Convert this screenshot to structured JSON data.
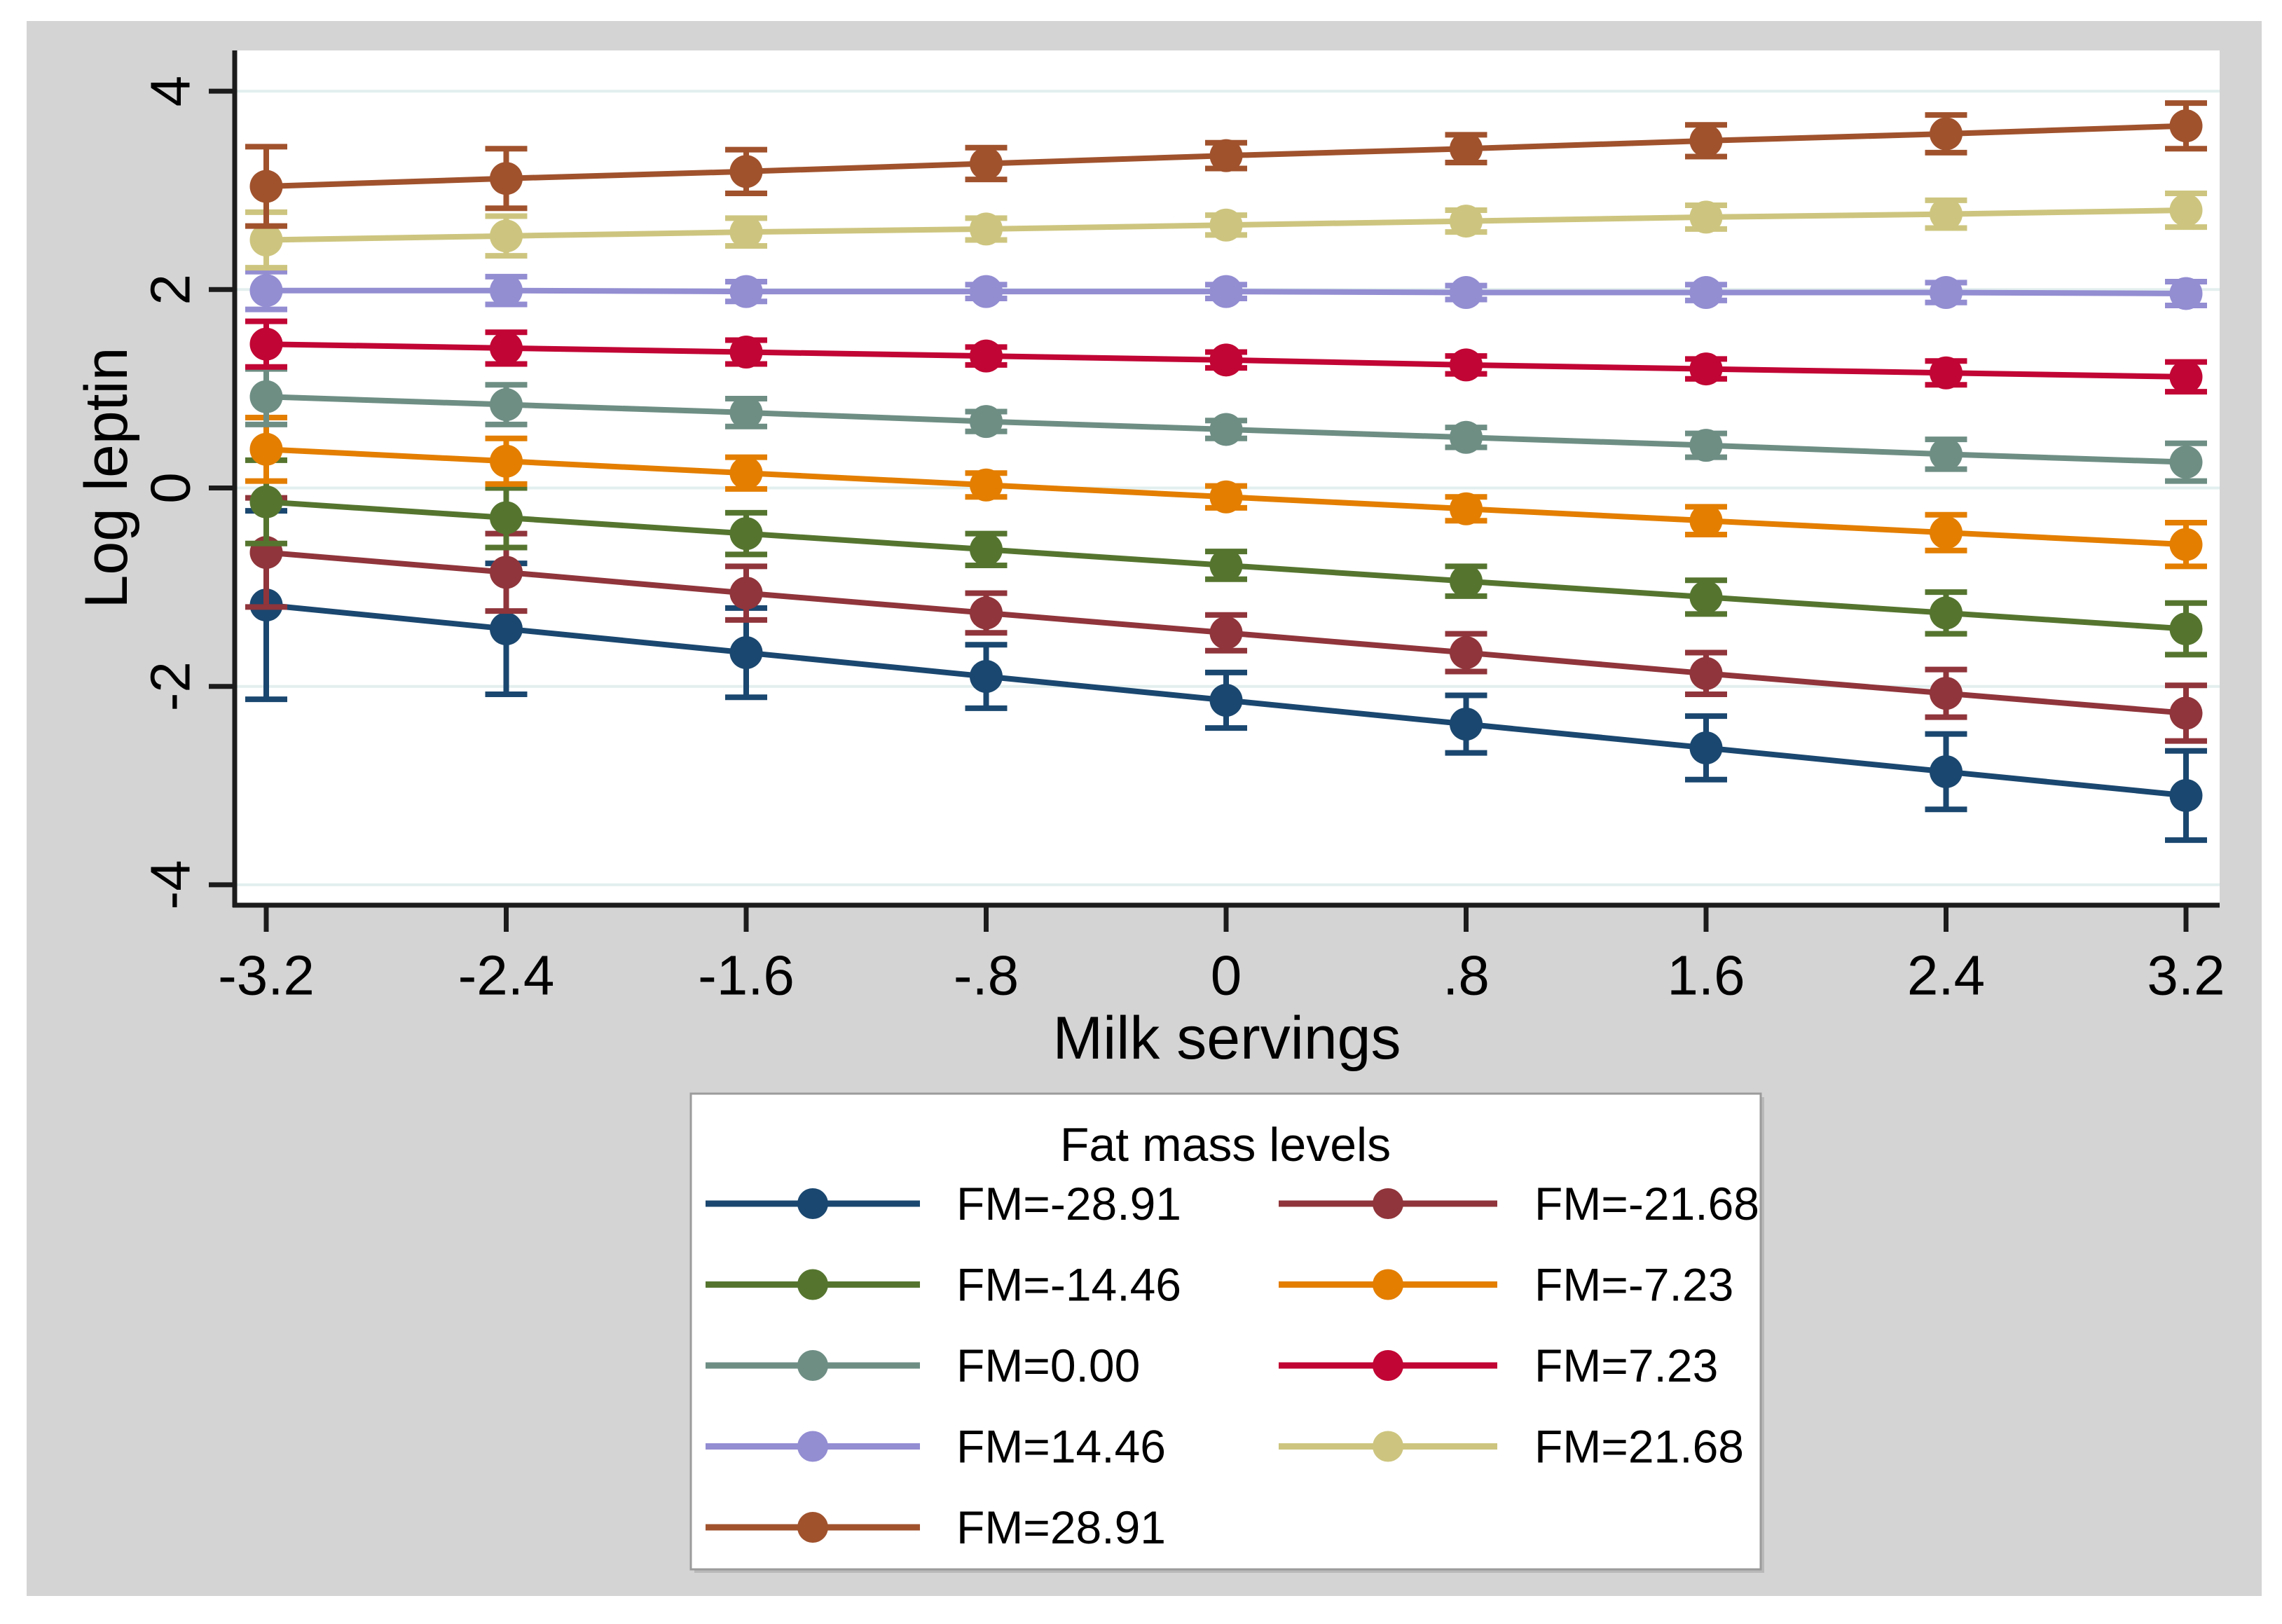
{
  "figure": {
    "x_axis": {
      "title": "Milk servings"
    },
    "y_axis": {
      "title": "Log leptin"
    },
    "legend": {
      "title": "Fat mass levels"
    }
  },
  "colors": {
    "page_background": "#ffffff",
    "panel_background": "#d4d4d4",
    "plot_background": "#ffffff",
    "gridline": "#e2efee",
    "axis": "#1c1c1c",
    "legend_border": "#9b9b9b",
    "legend_background": "#ffffff"
  },
  "chart_data": {
    "type": "line",
    "title": "",
    "xlabel": "Milk servings",
    "ylabel": "Log leptin",
    "x": [
      -3.2,
      -2.4,
      -1.6,
      -0.8,
      0,
      0.8,
      1.6,
      2.4,
      3.2
    ],
    "x_tick_labels": [
      "-3.2",
      "-2.4",
      "-1.6",
      "-.8",
      "0",
      ".8",
      "1.6",
      "2.4",
      "3.2"
    ],
    "y_ticks": [
      4,
      2,
      0,
      -2,
      -4
    ],
    "y_tick_labels": [
      "4",
      "2",
      "0",
      "-2",
      "-4"
    ],
    "ylim": [
      -4.45,
      4.4
    ],
    "xlim": [
      -3.3,
      3.31
    ],
    "grid": "horizontal gridlines at y ticks",
    "legend_title": "Fat mass levels",
    "legend_position": "below plot, two columns",
    "error_bars": true,
    "marker": "circle",
    "series": [
      {
        "name": "FM=-28.91",
        "color": "#1A476F",
        "values": [
          -1.18,
          -1.42,
          -1.66,
          -1.9,
          -2.14,
          -2.38,
          -2.62,
          -2.86,
          -3.1
        ],
        "ci_half_width": [
          0.95,
          0.66,
          0.45,
          0.32,
          0.28,
          0.29,
          0.32,
          0.38,
          0.45
        ]
      },
      {
        "name": "FM=-21.68",
        "color": "#90353B",
        "values": [
          -0.65,
          -0.85,
          -1.06,
          -1.26,
          -1.46,
          -1.66,
          -1.87,
          -2.07,
          -2.27
        ],
        "ci_half_width": [
          0.55,
          0.39,
          0.27,
          0.2,
          0.18,
          0.19,
          0.21,
          0.24,
          0.28
        ]
      },
      {
        "name": "FM=-14.46",
        "color": "#55752F",
        "values": [
          -0.14,
          -0.3,
          -0.46,
          -0.62,
          -0.78,
          -0.94,
          -1.1,
          -1.26,
          -1.42
        ],
        "ci_half_width": [
          0.42,
          0.3,
          0.21,
          0.16,
          0.14,
          0.15,
          0.17,
          0.21,
          0.26
        ]
      },
      {
        "name": "FM=-7.23",
        "color": "#E37E00",
        "values": [
          0.39,
          0.27,
          0.15,
          0.03,
          -0.09,
          -0.21,
          -0.33,
          -0.45,
          -0.57
        ],
        "ci_half_width": [
          0.32,
          0.23,
          0.16,
          0.12,
          0.11,
          0.12,
          0.14,
          0.18,
          0.22
        ]
      },
      {
        "name": "FM=0.00",
        "color": "#6E8E84",
        "values": [
          0.92,
          0.84,
          0.76,
          0.67,
          0.59,
          0.51,
          0.43,
          0.34,
          0.26
        ],
        "ci_half_width": [
          0.28,
          0.2,
          0.14,
          0.1,
          0.09,
          0.1,
          0.12,
          0.15,
          0.19
        ]
      },
      {
        "name": "FM=7.23",
        "color": "#C10534",
        "values": [
          1.45,
          1.41,
          1.37,
          1.33,
          1.29,
          1.24,
          1.2,
          1.16,
          1.12
        ],
        "ci_half_width": [
          0.23,
          0.16,
          0.12,
          0.09,
          0.08,
          0.09,
          0.1,
          0.12,
          0.15
        ]
      },
      {
        "name": "FM=14.46",
        "color": "#938DD2",
        "values": [
          1.99,
          1.99,
          1.98,
          1.98,
          1.98,
          1.97,
          1.97,
          1.97,
          1.96
        ],
        "ci_half_width": [
          0.19,
          0.14,
          0.1,
          0.07,
          0.07,
          0.07,
          0.08,
          0.1,
          0.12
        ]
      },
      {
        "name": "FM=21.68",
        "color": "#CDC57F",
        "values": [
          2.5,
          2.54,
          2.58,
          2.61,
          2.65,
          2.69,
          2.73,
          2.76,
          2.8
        ],
        "ci_half_width": [
          0.28,
          0.2,
          0.14,
          0.11,
          0.1,
          0.11,
          0.12,
          0.14,
          0.17
        ]
      },
      {
        "name": "FM=28.91",
        "color": "#A0522D",
        "values": [
          3.04,
          3.12,
          3.19,
          3.27,
          3.35,
          3.42,
          3.5,
          3.57,
          3.65
        ],
        "ci_half_width": [
          0.4,
          0.3,
          0.22,
          0.16,
          0.13,
          0.14,
          0.16,
          0.19,
          0.23
        ]
      }
    ]
  }
}
